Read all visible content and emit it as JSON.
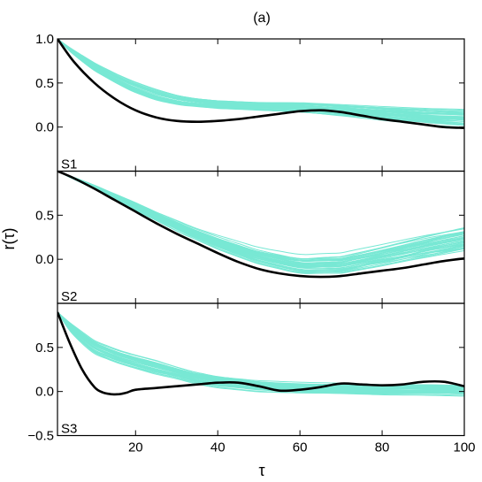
{
  "figure_title": "(a)",
  "chart_data": {
    "type": "line",
    "title": "(a)",
    "xlabel": "τ",
    "ylabel": "r(τ)",
    "xlim": [
      1,
      100
    ],
    "x_ticks": [
      20,
      40,
      60,
      80,
      100
    ],
    "x_tick_labels": [
      "20",
      "40",
      "60",
      "80",
      "100"
    ],
    "colors": {
      "ensemble": "#78e8d4",
      "observed": "#000000"
    },
    "panels": [
      {
        "label": "S1",
        "ylim": [
          -0.5,
          1.0
        ],
        "y_ticks": [
          0.0,
          0.5,
          1.0
        ],
        "y_tick_labels": [
          "0.0",
          "0.5",
          "1.0"
        ],
        "ensemble": {
          "count": 40,
          "x": [
            1,
            5,
            10,
            15,
            20,
            25,
            30,
            35,
            40,
            50,
            60,
            70,
            80,
            90,
            100
          ],
          "mean": [
            1.0,
            0.84,
            0.68,
            0.55,
            0.44,
            0.36,
            0.3,
            0.27,
            0.25,
            0.23,
            0.22,
            0.19,
            0.16,
            0.13,
            0.11
          ],
          "spread": [
            0.0,
            0.03,
            0.05,
            0.06,
            0.07,
            0.07,
            0.06,
            0.05,
            0.05,
            0.05,
            0.06,
            0.07,
            0.08,
            0.09,
            0.1
          ]
        },
        "observed": {
          "x": [
            1,
            5,
            10,
            15,
            20,
            25,
            30,
            35,
            40,
            45,
            50,
            55,
            60,
            65,
            70,
            75,
            80,
            85,
            90,
            95,
            100
          ],
          "y": [
            1.0,
            0.74,
            0.5,
            0.32,
            0.19,
            0.11,
            0.07,
            0.06,
            0.07,
            0.09,
            0.12,
            0.15,
            0.18,
            0.19,
            0.17,
            0.13,
            0.09,
            0.06,
            0.03,
            0.0,
            -0.01
          ]
        }
      },
      {
        "label": "S2",
        "ylim": [
          -0.5,
          1.0
        ],
        "y_ticks": [
          0.0,
          0.5
        ],
        "y_tick_labels": [
          "0.0",
          "0.5"
        ],
        "ensemble": {
          "count": 40,
          "x": [
            1,
            5,
            10,
            15,
            20,
            25,
            30,
            35,
            40,
            50,
            60,
            70,
            80,
            90,
            100
          ],
          "mean": [
            1.0,
            0.92,
            0.82,
            0.71,
            0.6,
            0.49,
            0.38,
            0.28,
            0.19,
            0.03,
            -0.07,
            -0.06,
            0.03,
            0.13,
            0.22
          ],
          "spread": [
            0.0,
            0.01,
            0.02,
            0.03,
            0.04,
            0.04,
            0.05,
            0.05,
            0.06,
            0.07,
            0.08,
            0.09,
            0.1,
            0.11,
            0.12
          ]
        },
        "observed": {
          "x": [
            1,
            5,
            10,
            15,
            20,
            25,
            30,
            35,
            40,
            45,
            50,
            55,
            60,
            65,
            70,
            75,
            80,
            85,
            90,
            95,
            100
          ],
          "y": [
            1.0,
            0.92,
            0.8,
            0.67,
            0.54,
            0.41,
            0.29,
            0.18,
            0.07,
            -0.03,
            -0.11,
            -0.16,
            -0.19,
            -0.2,
            -0.19,
            -0.16,
            -0.13,
            -0.1,
            -0.06,
            -0.02,
            0.01
          ]
        }
      },
      {
        "label": "S3",
        "ylim": [
          -0.5,
          1.0
        ],
        "y_ticks": [
          -0.5,
          0.0,
          0.5
        ],
        "y_tick_labels": [
          "−0.5",
          "0.0",
          "0.5"
        ],
        "ensemble": {
          "count": 40,
          "x": [
            1,
            5,
            10,
            15,
            20,
            25,
            30,
            35,
            40,
            50,
            60,
            70,
            80,
            90,
            100
          ],
          "mean": [
            0.9,
            0.68,
            0.5,
            0.4,
            0.33,
            0.27,
            0.21,
            0.15,
            0.11,
            0.06,
            0.04,
            0.03,
            0.02,
            0.02,
            0.01
          ],
          "spread": [
            0.0,
            0.05,
            0.06,
            0.06,
            0.06,
            0.06,
            0.05,
            0.05,
            0.05,
            0.05,
            0.05,
            0.05,
            0.05,
            0.05,
            0.05
          ]
        },
        "observed": {
          "x": [
            1,
            4,
            7,
            10,
            12,
            14,
            16,
            18,
            20,
            25,
            30,
            35,
            40,
            45,
            50,
            55,
            60,
            65,
            70,
            75,
            80,
            85,
            90,
            95,
            100
          ],
          "y": [
            0.9,
            0.55,
            0.25,
            0.05,
            -0.01,
            -0.03,
            -0.03,
            -0.01,
            0.02,
            0.04,
            0.06,
            0.08,
            0.1,
            0.1,
            0.06,
            0.01,
            0.02,
            0.05,
            0.09,
            0.08,
            0.07,
            0.08,
            0.11,
            0.11,
            0.06
          ]
        }
      }
    ]
  }
}
